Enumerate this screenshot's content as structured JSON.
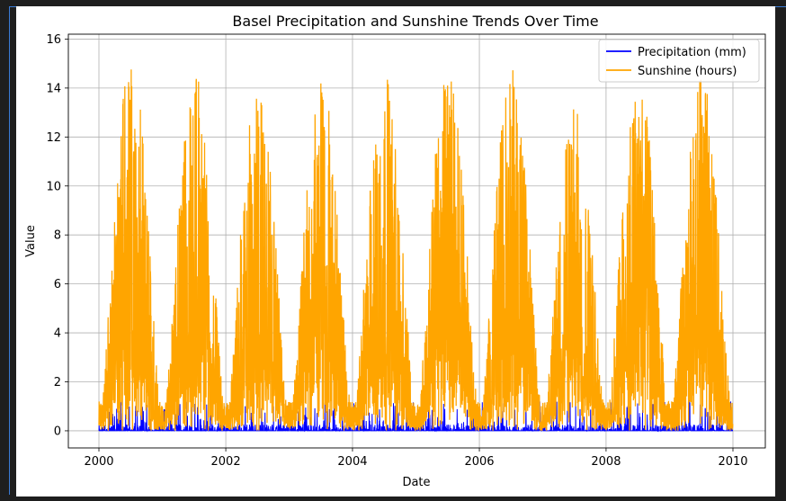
{
  "chart_data": {
    "type": "line",
    "title": "Basel Precipitation and Sunshine Trends Over Time",
    "xlabel": "Date",
    "ylabel": "Value",
    "xlim": [
      "2000-01-01",
      "2010-01-01"
    ],
    "ylim": [
      -0.7,
      16.2
    ],
    "x_ticks": [
      "2000",
      "2002",
      "2004",
      "2006",
      "2008",
      "2010"
    ],
    "y_ticks": [
      "0",
      "2",
      "4",
      "6",
      "8",
      "10",
      "12",
      "14",
      "16"
    ],
    "grid": true,
    "legend_position": "top-right",
    "series": [
      {
        "name": "Precipitation (mm)",
        "color": "#0000ff",
        "frequency": "daily",
        "start": "2000-01-01",
        "end": "2010-01-01",
        "typical_range": [
          0,
          1.2
        ],
        "max": 2.6
      },
      {
        "name": "Sunshine (hours)",
        "color": "#ffa500",
        "frequency": "daily",
        "start": "2000-01-01",
        "end": "2010-01-01",
        "yearly_peaks": [
          {
            "year": 2000,
            "value": 15.3
          },
          {
            "year": 2001,
            "value": 14.8
          },
          {
            "year": 2002,
            "value": 14.3
          },
          {
            "year": 2003,
            "value": 14.6
          },
          {
            "year": 2004,
            "value": 14.7
          },
          {
            "year": 2005,
            "value": 15.1
          },
          {
            "year": 2006,
            "value": 14.9
          },
          {
            "year": 2007,
            "value": 13.3
          },
          {
            "year": 2008,
            "value": 14.8
          },
          {
            "year": 2009,
            "value": 14.5
          }
        ],
        "winter_low": 0.0
      }
    ]
  }
}
